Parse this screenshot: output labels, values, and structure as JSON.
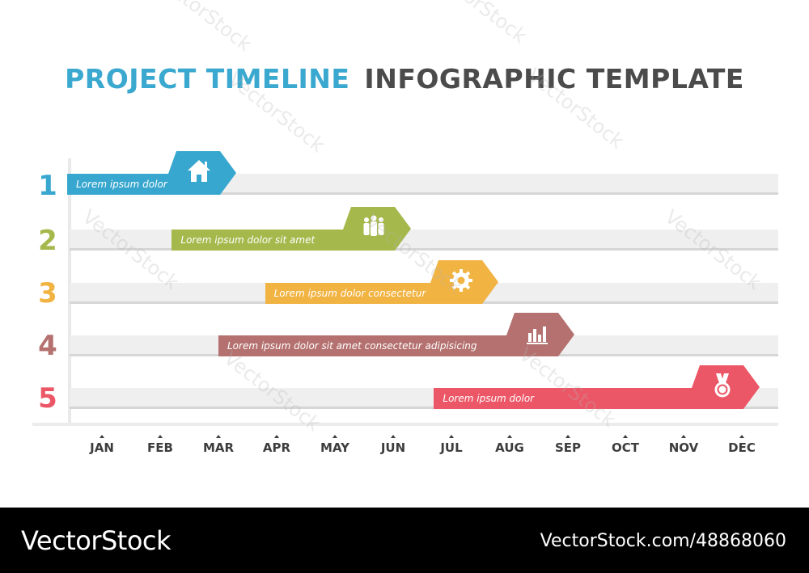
{
  "title": {
    "part1": "PROJECT TIMELINE",
    "part2": "INFOGRAPHIC TEMPLATE"
  },
  "rows": [
    {
      "number": "1",
      "label": "Lorem ipsum dolor",
      "icon": "house-icon",
      "color": "#38a7cf",
      "start_month": 1,
      "end_month": 3
    },
    {
      "number": "2",
      "label": "Lorem ipsum dolor  sit amet",
      "icon": "people-icon",
      "color": "#a5b84b",
      "start_month": 2.2,
      "end_month": 6
    },
    {
      "number": "3",
      "label": "Lorem ipsum dolor  consectetur",
      "icon": "gear-icon",
      "color": "#f1b342",
      "start_month": 3.8,
      "end_month": 7.5
    },
    {
      "number": "4",
      "label": "Lorem ipsum dolor sit amet consectetur adipisicing",
      "icon": "bar-chart-icon",
      "color": "#b4716f",
      "start_month": 3,
      "end_month": 8.8
    },
    {
      "number": "5",
      "label": "Lorem ipsum dolor",
      "icon": "medal-icon",
      "color": "#ec5767",
      "start_month": 6.7,
      "end_month": 12
    }
  ],
  "months": [
    "JAN",
    "FEB",
    "MAR",
    "APR",
    "MAY",
    "JUN",
    "JUL",
    "AUG",
    "SEP",
    "OCT",
    "NOV",
    "DEC"
  ],
  "watermark": "VectorStock",
  "footer": {
    "brand": "VectorStock",
    "ref": "VectorStock.com/48868060"
  }
}
